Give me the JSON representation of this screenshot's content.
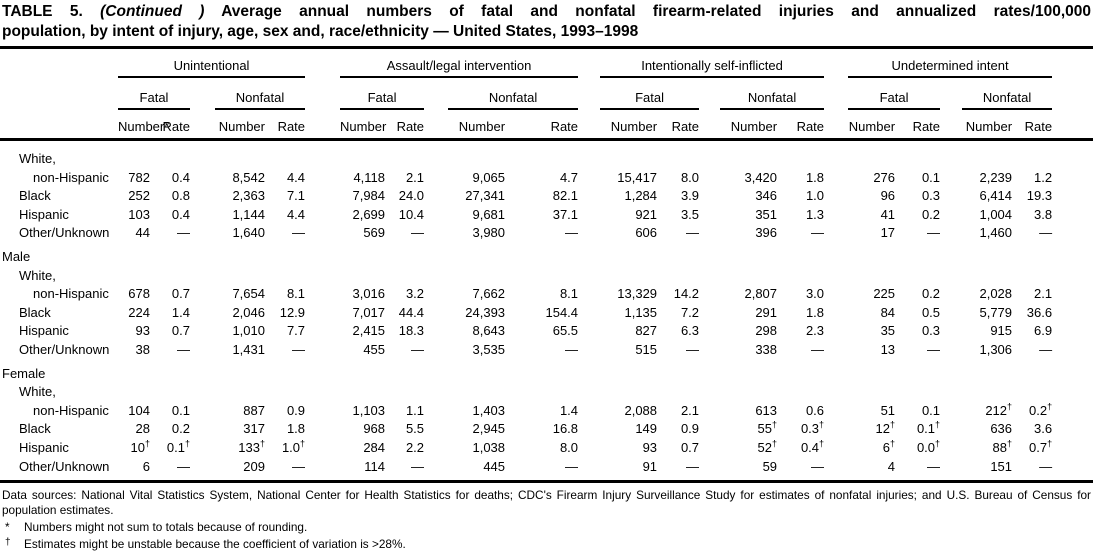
{
  "title": {
    "table_label": "TABLE 5.",
    "continued": "(Continued )",
    "line1_rest": "Average annual numbers of fatal and nonfatal firearm-related injuries and annualized rates/100,000",
    "line2": "population, by intent of injury, age, sex and, race/ethnicity — United States, 1993–1998"
  },
  "table": {
    "groups": [
      {
        "label": "Unintentional",
        "subgroups": [
          {
            "label": "Fatal",
            "columns": [
              "Number*",
              "Rate"
            ]
          },
          {
            "label": "Nonfatal",
            "columns": [
              "Number",
              "Rate"
            ]
          }
        ]
      },
      {
        "label": "Assault/legal intervention",
        "subgroups": [
          {
            "label": "Fatal",
            "columns": [
              "Number",
              "Rate"
            ]
          },
          {
            "label": "Nonfatal",
            "columns": [
              "Number",
              "Rate"
            ]
          }
        ]
      },
      {
        "label": "Intentionally self-inflicted",
        "subgroups": [
          {
            "label": "Fatal",
            "columns": [
              "Number",
              "Rate"
            ]
          },
          {
            "label": "Nonfatal",
            "columns": [
              "Number",
              "Rate"
            ]
          }
        ]
      },
      {
        "label": "Undetermined intent",
        "subgroups": [
          {
            "label": "Fatal",
            "columns": [
              "Number",
              "Rate"
            ]
          },
          {
            "label": "Nonfatal",
            "columns": [
              "Number",
              "Rate"
            ]
          }
        ]
      }
    ],
    "sections": [
      {
        "label": "",
        "rows": [
          {
            "label": "White,",
            "indent": 1,
            "values": null
          },
          {
            "label": "non-Hispanic",
            "indent": 2,
            "values": [
              "782",
              "0.4",
              "8,542",
              "4.4",
              "4,118",
              "2.1",
              "9,065",
              "4.7",
              "15,417",
              "8.0",
              "3,420",
              "1.8",
              "276",
              "0.1",
              "2,239",
              "1.2"
            ]
          },
          {
            "label": "Black",
            "indent": 1,
            "values": [
              "252",
              "0.8",
              "2,363",
              "7.1",
              "7,984",
              "24.0",
              "27,341",
              "82.1",
              "1,284",
              "3.9",
              "346",
              "1.0",
              "96",
              "0.3",
              "6,414",
              "19.3"
            ]
          },
          {
            "label": "Hispanic",
            "indent": 1,
            "values": [
              "103",
              "0.4",
              "1,144",
              "4.4",
              "2,699",
              "10.4",
              "9,681",
              "37.1",
              "921",
              "3.5",
              "351",
              "1.3",
              "41",
              "0.2",
              "1,004",
              "3.8"
            ]
          },
          {
            "label": "Other/Unknown",
            "indent": 1,
            "values": [
              "44",
              "—",
              "1,640",
              "—",
              "569",
              "—",
              "3,980",
              "—",
              "606",
              "—",
              "396",
              "—",
              "17",
              "—",
              "1,460",
              "—"
            ]
          }
        ]
      },
      {
        "label": "Male",
        "rows": [
          {
            "label": "White,",
            "indent": 1,
            "values": null
          },
          {
            "label": "non-Hispanic",
            "indent": 2,
            "values": [
              "678",
              "0.7",
              "7,654",
              "8.1",
              "3,016",
              "3.2",
              "7,662",
              "8.1",
              "13,329",
              "14.2",
              "2,807",
              "3.0",
              "225",
              "0.2",
              "2,028",
              "2.1"
            ]
          },
          {
            "label": "Black",
            "indent": 1,
            "values": [
              "224",
              "1.4",
              "2,046",
              "12.9",
              "7,017",
              "44.4",
              "24,393",
              "154.4",
              "1,135",
              "7.2",
              "291",
              "1.8",
              "84",
              "0.5",
              "5,779",
              "36.6"
            ]
          },
          {
            "label": "Hispanic",
            "indent": 1,
            "values": [
              "93",
              "0.7",
              "1,010",
              "7.7",
              "2,415",
              "18.3",
              "8,643",
              "65.5",
              "827",
              "6.3",
              "298",
              "2.3",
              "35",
              "0.3",
              "915",
              "6.9"
            ]
          },
          {
            "label": "Other/Unknown",
            "indent": 1,
            "values": [
              "38",
              "—",
              "1,431",
              "—",
              "455",
              "—",
              "3,535",
              "—",
              "515",
              "—",
              "338",
              "—",
              "13",
              "—",
              "1,306",
              "—"
            ]
          }
        ]
      },
      {
        "label": "Female",
        "rows": [
          {
            "label": "White,",
            "indent": 1,
            "values": null
          },
          {
            "label": "non-Hispanic",
            "indent": 2,
            "values": [
              "104",
              "0.1",
              "887",
              "0.9",
              "1,103",
              "1.1",
              "1,403",
              "1.4",
              "2,088",
              "2.1",
              "613",
              "0.6",
              "51",
              "0.1",
              "212†",
              "0.2†"
            ]
          },
          {
            "label": "Black",
            "indent": 1,
            "values": [
              "28",
              "0.2",
              "317",
              "1.8",
              "968",
              "5.5",
              "2,945",
              "16.8",
              "149",
              "0.9",
              "55†",
              "0.3†",
              "12†",
              "0.1†",
              "636",
              "3.6"
            ]
          },
          {
            "label": "Hispanic",
            "indent": 1,
            "values": [
              "10†",
              "0.1†",
              "133†",
              "1.0†",
              "284",
              "2.2",
              "1,038",
              "8.0",
              "93",
              "0.7",
              "52†",
              "0.4†",
              "6†",
              "0.0†",
              "88†",
              "0.7†"
            ]
          },
          {
            "label": "Other/Unknown",
            "indent": 1,
            "values": [
              "6",
              "—",
              "209",
              "—",
              "114",
              "—",
              "445",
              "—",
              "91",
              "—",
              "59",
              "—",
              "4",
              "—",
              "151",
              "—"
            ]
          }
        ]
      }
    ]
  },
  "footnotes": {
    "data_sources": "Data sources: National Vital Statistics System, National Center for Health Statistics for deaths; CDC's Firearm Injury Surveillance Study for estimates of nonfatal injuries; and U.S. Bureau of Census for population estimates.",
    "asterisk_marker": "*",
    "asterisk_text": "Numbers might not sum to totals because of rounding.",
    "dagger_marker": "†",
    "dagger_text": "Estimates might be unstable because the coefficient of variation is >28%."
  }
}
